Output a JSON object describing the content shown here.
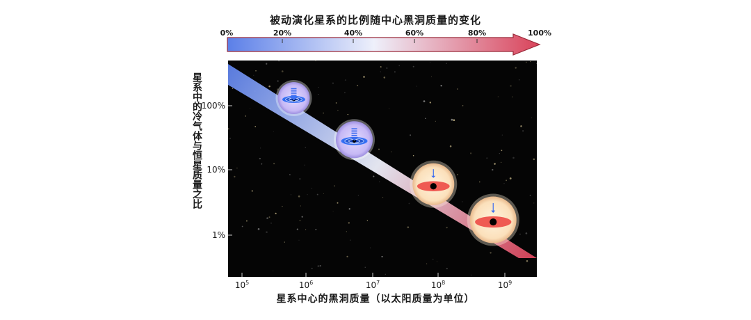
{
  "title": "被动演化星系的比例随中心黑洞质量的变化",
  "colorbar": {
    "tick_labels": [
      "0%",
      "20%",
      "40%",
      "60%",
      "80%",
      "100%"
    ],
    "colors": {
      "start": "#5b7fe8",
      "mid": "#eef0fb",
      "end": "#d9435a"
    }
  },
  "axes": {
    "ylabel": "星系中的冷气体与恒星质量之比",
    "y_ticks": [
      "100%",
      "10%",
      "1%"
    ],
    "x_ticks": [
      {
        "base": "10",
        "exp": "5"
      },
      {
        "base": "10",
        "exp": "6"
      },
      {
        "base": "10",
        "exp": "7"
      },
      {
        "base": "10",
        "exp": "8"
      },
      {
        "base": "10",
        "exp": "9"
      }
    ],
    "xlabel": "星系中心的黑洞质量（以太阳质量为单位）"
  },
  "chart_data": {
    "type": "scatter",
    "x_scale": "log",
    "y_scale": "log",
    "xlim": [
      60000,
      3000000000
    ],
    "ylim": [
      0.0014,
      3.5
    ],
    "points": [
      {
        "x": 600000,
        "y": 0.9,
        "state": "star-forming",
        "symbol": "blue-spiral-disk"
      },
      {
        "x": 5000000,
        "y": 0.2,
        "state": "star-forming",
        "symbol": "blue-spiral-disk"
      },
      {
        "x": 80000000,
        "y": 0.04,
        "state": "quenched",
        "symbol": "red-elliptical-disk"
      },
      {
        "x": 650000000,
        "y": 0.011,
        "state": "quenched",
        "symbol": "red-elliptical-disk"
      }
    ],
    "background": "starfield",
    "arrow": "blue-to-red gradient band, upper-left to lower-right"
  }
}
